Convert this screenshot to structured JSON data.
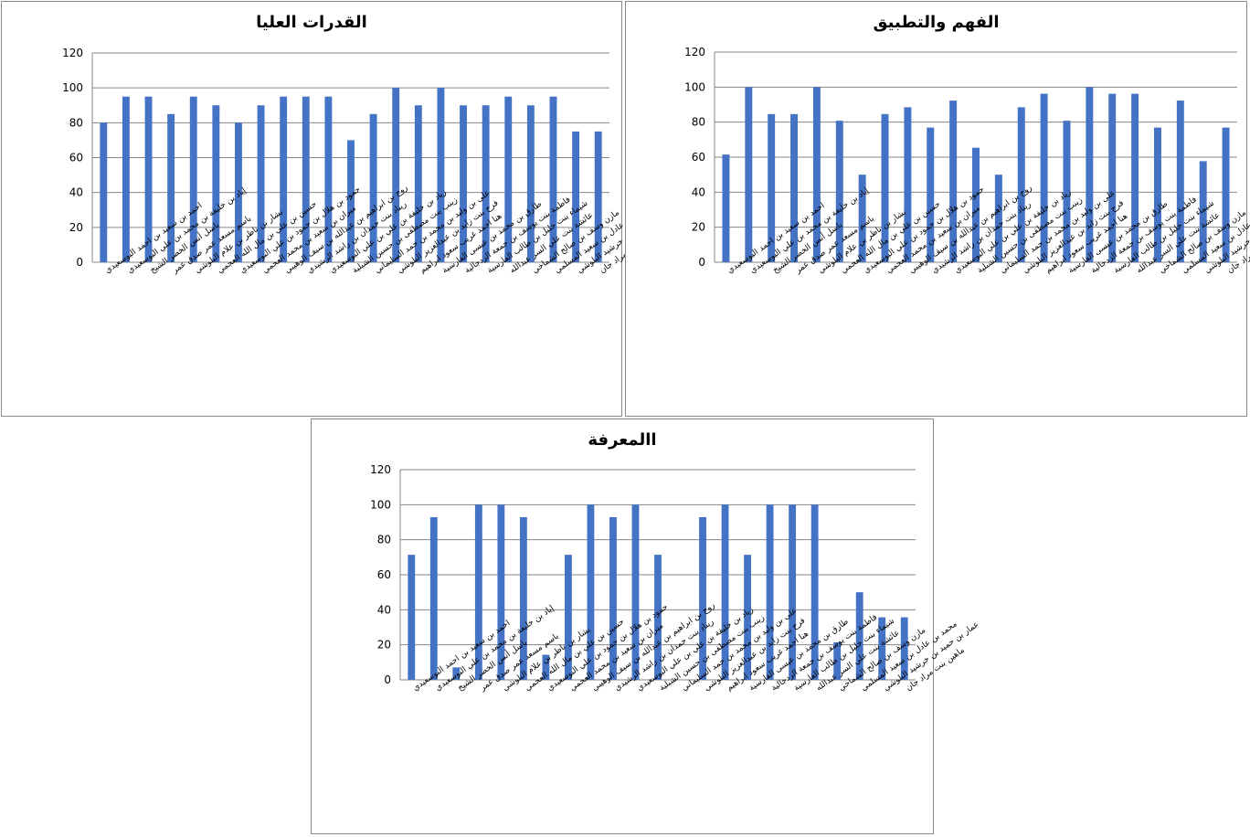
{
  "chart_data": [
    {
      "type": "bar",
      "title": "القدرات العليا",
      "categories": [
        "احمد بن سعيد بن احمد البوسعيدي",
        "إياد بن خليفة بن محمد بن علي البوسعيدي",
        "باسل أنس الخضر الشيخ",
        "باسم مسعد عمر صدق عمر",
        "بشار بن ناظر بن علام البلوشي",
        "حسين بن علي بن مال الله العجمي",
        "حمود بن هلال بن حمود بن علي البوسعيدي",
        "ميران بن سعيد بن محمد العجمي",
        "روح بن ابراهيم بن عبدالله بن سيف الوهيبي",
        "ريناد بنت حمدان بن راشد الرشيدي",
        "زياد بن خليفة بن علي بن علي البوسعيدي",
        "زينب بنت مصطفى بن حسين الشبلية",
        "على بن وليد بن محمد بن حمد السليماني",
        "فرح بنت زايد بن عبدالعزيز البلوشي",
        "هنا احمد غريب سعود ابراهيم",
        "طارق بن محمد بن عيسى الفارسية",
        "فاطمة بنت يوسف بن جمعة الزدجالية",
        "شيماء بنت خليل بن طالب الفارسية",
        "عائشة بنت علي السر عبدالله",
        "مازن وسف بن صالح الشماخي",
        "محمد بن عادل بن سعيد المسلمي",
        "عمار بن حميد بن خرشيد البلوشي",
        "ماهين بنت مراد جان"
      ],
      "values": [
        80,
        95,
        95,
        85,
        95,
        90,
        80,
        90,
        95,
        95,
        95,
        70,
        85,
        100,
        90,
        100,
        90,
        90,
        95,
        90,
        95,
        75,
        75
      ],
      "ylim": [
        0,
        120
      ],
      "yticks": [
        0,
        20,
        40,
        60,
        80,
        100,
        120
      ],
      "bar_color": "#4472C4",
      "grid": true
    },
    {
      "type": "bar",
      "title": "الفهم والتطبيق",
      "categories": [
        "احمد بن سعيد بن احمد البوسعيدي",
        "إياد بن خليفة بن محمد بن علي البوسعيدي",
        "باسل أنس الخضر الشيخ",
        "باسم مسعد عمر صدق عمر",
        "بشار بن ناظر بن علام البلوشي",
        "حسين بن علي بن مال الله العجمي",
        "حمود بن هلال بن حمود بن علي البوسعيدي",
        "ميران بن سعيد بن محمد العجمي",
        "روح بن ابراهيم بن عبدالله بن سيف الوهيبي",
        "ريناد بنت حمدان بن راشد الرشيدي",
        "زياد بن خليفة بن علي بن علي البوسعيدي",
        "زينب بنت مصطفى بن حسين الشبلية",
        "على بن وليد بن محمد بن حمد السليماني",
        "فرح بنت زايد بن عبدالعزيز البلوشي",
        "هنا احمد غريب سعود ابراهيم",
        "طارق بن محمد بن عيسى الفارسية",
        "فاطمة بنت يوسف بن جمعة الزدجالية",
        "شيماء بنت خليل بن طالب الفارسية",
        "عائشة بنت علي السر عبدالله",
        "مازن وسف بن صالح الشماخي",
        "محمد بن عادل بن سعيد المسلمي",
        "عمار بن حميد بن خرشيد البلوشي",
        "ماهين بنت مراد جان"
      ],
      "values": [
        61.5,
        100,
        84.6,
        84.6,
        100,
        80.8,
        50,
        84.6,
        88.5,
        76.9,
        92.3,
        65.4,
        50,
        88.5,
        96.2,
        80.8,
        100,
        96.2,
        96.2,
        76.9,
        92.3,
        57.7,
        76.9
      ],
      "ylim": [
        0,
        120
      ],
      "yticks": [
        0,
        20,
        40,
        60,
        80,
        100,
        120
      ],
      "bar_color": "#4472C4",
      "grid": true
    },
    {
      "type": "bar",
      "title": "االمعرفة",
      "categories": [
        "احمد بن سعيد بن احمد البوسعيدي",
        "إياد بن خليفة بن محمد بن علي البوسعيدي",
        "باسل أنس الخضر الشيخ",
        "باسم مسعد عمر صدق عمر",
        "بشار بن ناظر بن علام البلوشي",
        "حسين بن علي بن مال الله العجمي",
        "حمود بن هلال بن حمود بن علي البوسعيدي",
        "ميران بن سعيد بن محمد العجمي",
        "روح بن ابراهيم بن عبدالله بن سيف الوهيبي",
        "ريناد بنت حمدان بن راشد الرشيدي",
        "زياد بن خليفة بن علي بن علي البوسعيدي",
        "زينب بنت مصطفى بن حسين الشبلية",
        "على بن وليد بن محمد بن حمد السليماني",
        "فرح بنت زايد بن عبدالعزيز البلوشي",
        "هنا احمد غريب سعود ابراهيم",
        "طارق بن محمد بن عيسى الفارسية",
        "فاطمة بنت يوسف بن جمعة الزدجالية",
        "شيماء بنت خليل بن طالب الفارسية",
        "عائشة بنت علي السر عبدالله",
        "مازن وسف بن صالح الشماخي",
        "محمد بن عادل بن سعيد المسلمي",
        "عمار بن حميد بن خرشيد البلوشي",
        "ماهين بنت مراد جان"
      ],
      "values": [
        71.4,
        92.9,
        7.1,
        100,
        100,
        92.9,
        14.3,
        71.4,
        100,
        92.9,
        100,
        71.4,
        0,
        92.9,
        100,
        71.4,
        100,
        100,
        100,
        21.4,
        50,
        35.7,
        35.7
      ],
      "ylim": [
        0,
        120
      ],
      "yticks": [
        0,
        20,
        40,
        60,
        80,
        100,
        120
      ],
      "bar_color": "#4472C4",
      "grid": true
    }
  ]
}
